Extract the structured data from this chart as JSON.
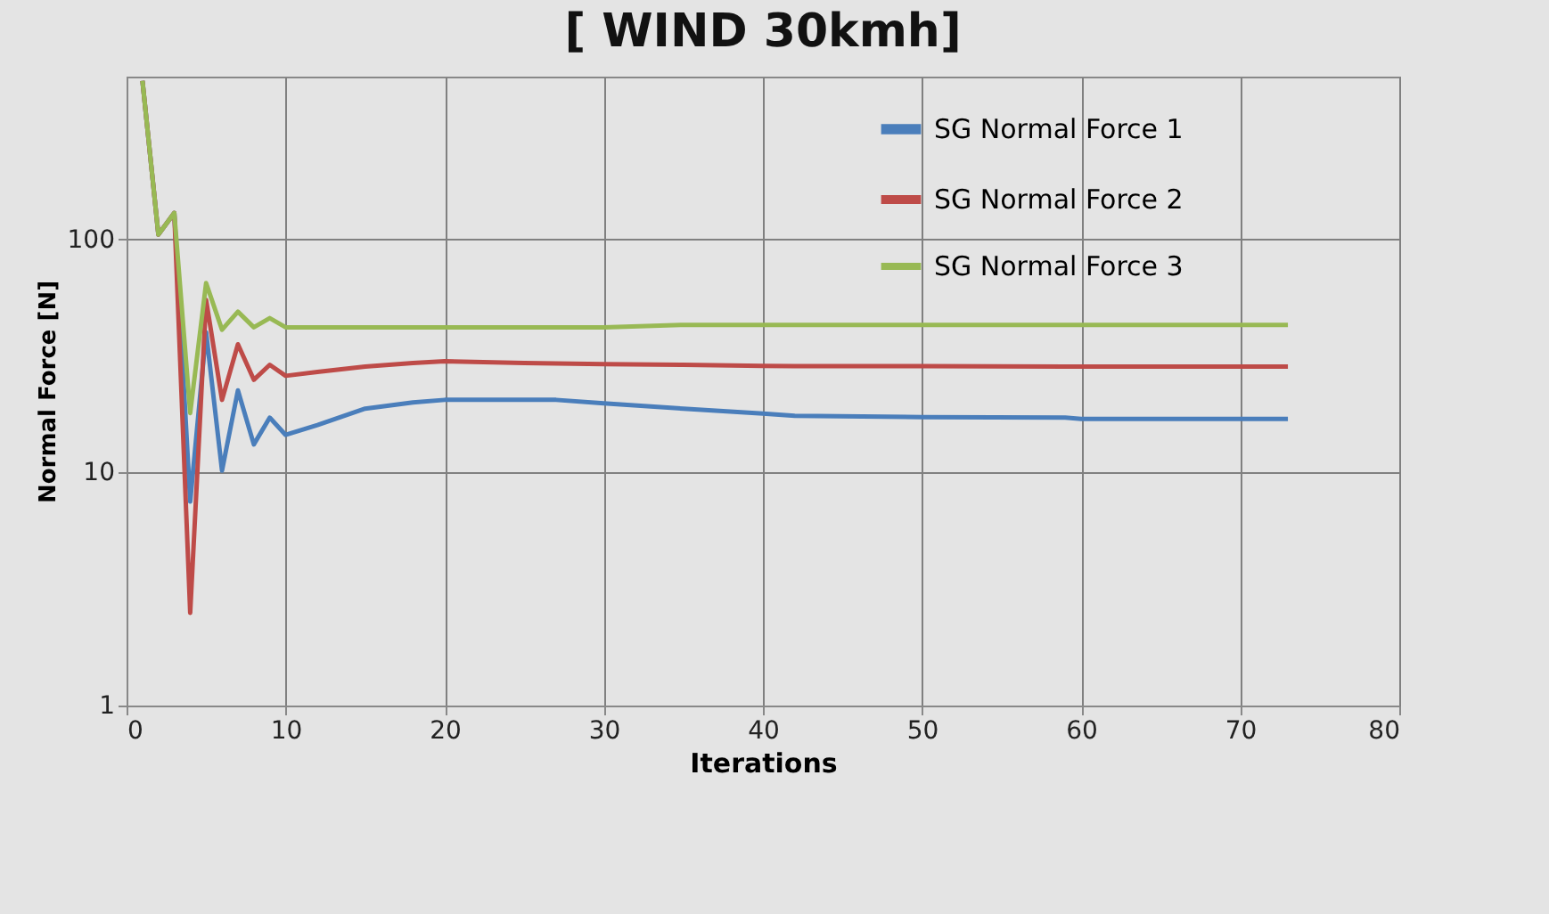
{
  "chart_data": {
    "type": "line",
    "title": "[ WIND 30kmh]",
    "xlabel": "Iterations",
    "ylabel": "Normal Force  [N]",
    "log": "y",
    "grid": true,
    "legend": "top right",
    "xlim": [
      0,
      80
    ],
    "xticks": [
      0,
      10,
      20,
      30,
      40,
      50,
      60,
      70,
      80
    ],
    "ylim": [
      1,
      500
    ],
    "yticks": [
      1,
      10,
      100
    ],
    "x": [
      1,
      2,
      3,
      4,
      5,
      6,
      7,
      8,
      9,
      10,
      12,
      15,
      18,
      20,
      25,
      27,
      30,
      35,
      40,
      42,
      50,
      59,
      60,
      73
    ],
    "series": [
      {
        "name": "SG Normal Force 1",
        "color": "#4a7ebb",
        "values": [
          480,
          105,
          130,
          7.5,
          40,
          10.2,
          22.5,
          13.2,
          17.2,
          14.5,
          16,
          18.8,
          20,
          20.5,
          20.5,
          20.5,
          19.8,
          18.8,
          17.9,
          17.5,
          17.3,
          17.2,
          17,
          17
        ]
      },
      {
        "name": "SG Normal Force 2",
        "color": "#be4b48",
        "values": [
          480,
          105,
          130,
          2.5,
          55,
          20.5,
          35.5,
          25,
          29,
          26,
          27,
          28.5,
          29.5,
          30,
          29.5,
          29.4,
          29.2,
          29,
          28.7,
          28.6,
          28.6,
          28.5,
          28.5,
          28.5
        ]
      },
      {
        "name": "SG Normal Force 3",
        "color": "#98b954",
        "values": [
          480,
          105,
          130,
          18,
          65,
          41,
          49,
          42,
          46,
          42,
          42,
          42,
          42,
          42,
          42,
          42,
          42,
          43,
          43,
          43,
          43,
          43,
          43,
          43
        ]
      }
    ]
  }
}
